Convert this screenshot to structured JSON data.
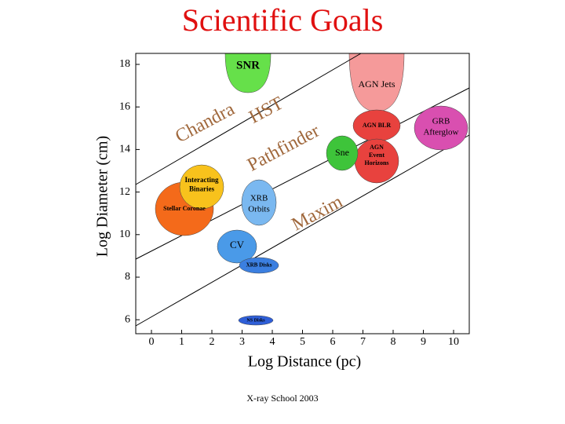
{
  "title": "Scientific Goals",
  "footer": "X-ray School 2003",
  "x_axis": {
    "label": "Log Distance (pc)",
    "ticks": [
      0,
      1,
      2,
      3,
      4,
      5,
      6,
      7,
      8,
      9,
      10
    ]
  },
  "y_axis": {
    "label": "Log Diameter (cm)",
    "ticks": [
      18,
      16,
      14,
      12,
      10,
      8,
      6
    ]
  },
  "instruments": [
    "Chandra",
    "HST",
    "Pathfinder",
    "Maxim"
  ],
  "regions": [
    {
      "lines": [
        "SNR"
      ]
    },
    {
      "lines": [
        "AGN Jets"
      ]
    },
    {
      "lines": [
        "GRB",
        "Afterglow"
      ]
    },
    {
      "lines": [
        "AGN BLR"
      ]
    },
    {
      "lines": [
        "Sne"
      ]
    },
    {
      "lines": [
        "AGN",
        "Event",
        "Horizons"
      ]
    },
    {
      "lines": [
        "Interacting",
        "Binaries"
      ]
    },
    {
      "lines": [
        "Stellar Coronae"
      ]
    },
    {
      "lines": [
        "XRB",
        "Orbits"
      ]
    },
    {
      "lines": [
        "CV"
      ]
    },
    {
      "lines": [
        "XRB Disks"
      ]
    },
    {
      "lines": [
        "NS Disks"
      ]
    }
  ]
}
